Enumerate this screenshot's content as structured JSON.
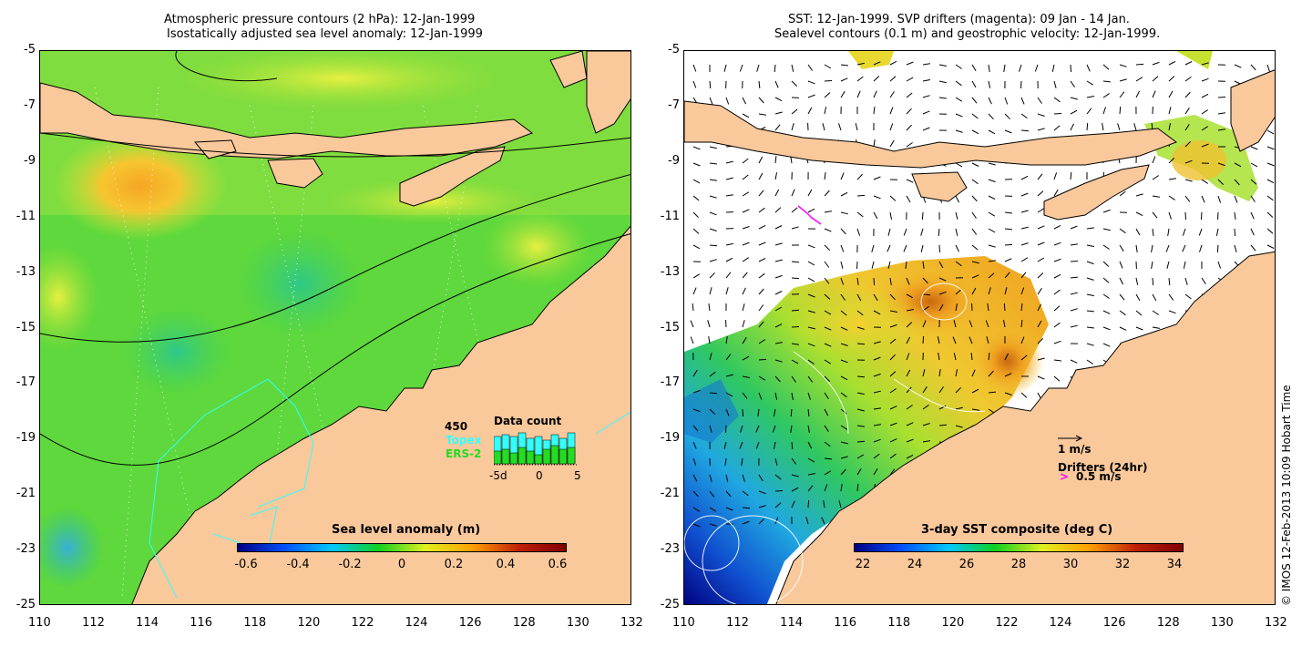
{
  "left_panel": {
    "title_line1": "Atmospheric pressure contours (2 hPa): 12-Jan-1999",
    "title_line2": "Isostatically adjusted sea level anomaly: 12-Jan-1999",
    "colorbar": {
      "label": "Sea level anomaly (m)",
      "ticks": [
        "-0.6",
        "-0.4",
        "-0.2",
        "0",
        "0.2",
        "0.4",
        "0.6"
      ],
      "colors": [
        "#000080",
        "#0050ff",
        "#00c8ff",
        "#10d020",
        "#e0f020",
        "#ffa000",
        "#c02000",
        "#800000"
      ]
    },
    "data_count": {
      "title": "Data count",
      "max_label": "450",
      "series1": "Topex",
      "series2": "ERS-2",
      "series1_color": "#33ffff",
      "series2_color": "#22dd22",
      "x_ticks": [
        "-5d",
        "0",
        "5"
      ]
    }
  },
  "right_panel": {
    "title_line1": "SST: 12-Jan-1999. SVP drifters (magenta): 09 Jan - 14 Jan.",
    "title_line2": "Sealevel contours (0.1 m) and geostrophic velocity: 12-Jan-1999.",
    "colorbar": {
      "label": "3-day SST composite (deg C)",
      "ticks": [
        "22",
        "24",
        "26",
        "28",
        "30",
        "32",
        "34"
      ],
      "colors": [
        "#000080",
        "#0050ff",
        "#00c8ff",
        "#10d020",
        "#e0f020",
        "#ffa000",
        "#c02000",
        "#800000"
      ]
    },
    "velocity_legend": "1 m/s",
    "drifter_legend_title": "Drifters (24hr)",
    "drifter_legend_value": "0.5 m/s",
    "drifter_color": "#ff00ff"
  },
  "axes": {
    "y_ticks": [
      "-5",
      "-7",
      "-9",
      "-11",
      "-13",
      "-15",
      "-17",
      "-19",
      "-21",
      "-23",
      "-25"
    ],
    "x_ticks": [
      "110",
      "112",
      "114",
      "116",
      "118",
      "120",
      "122",
      "124",
      "126",
      "128",
      "130",
      "132"
    ]
  },
  "credit": "© IMOS 12-Feb-2013 10:09 Hobart Time",
  "colors": {
    "land": "#f9c89b",
    "ocean_base": "#58d83a",
    "no_data": "#ffffff"
  }
}
